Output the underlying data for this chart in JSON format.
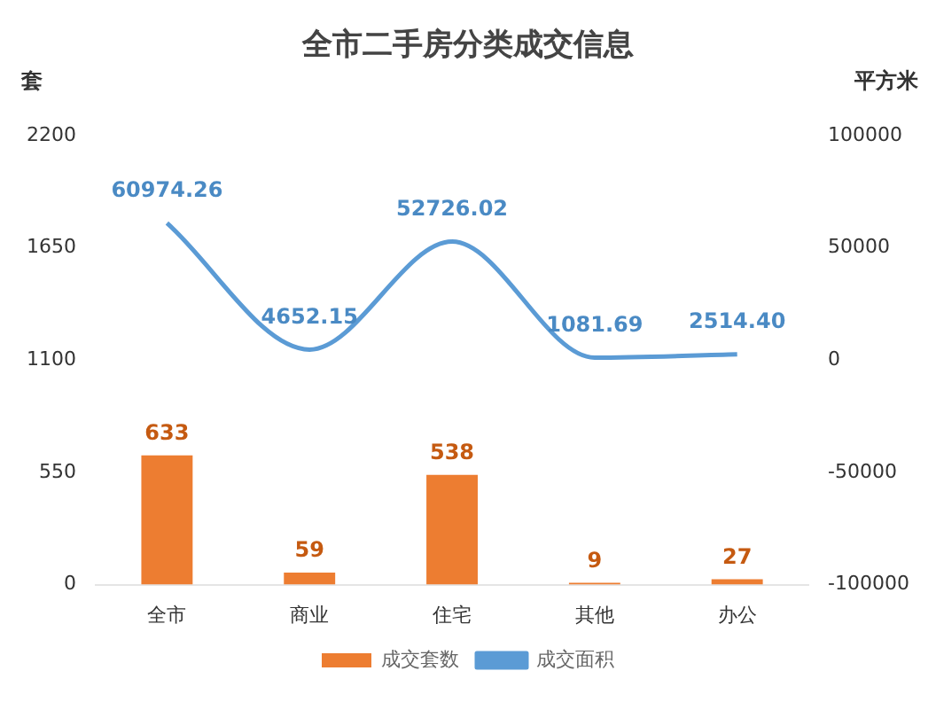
{
  "chart_data": {
    "type": "bar",
    "title": "全市二手房分类成交信息",
    "ylabel": "套",
    "y2label": "平方米",
    "categories": [
      "全市",
      "商业",
      "住宅",
      "其他",
      "办公"
    ],
    "series": [
      {
        "name": "成交套数",
        "color": "#ed7d31",
        "values": [
          633,
          59,
          538,
          9,
          27
        ],
        "value_labels": [
          "633",
          "59",
          "538",
          "9",
          "27"
        ]
      },
      {
        "name": "成交面积",
        "type": "line",
        "axis": "y2",
        "color": "#5b9bd5",
        "values": [
          60974.26,
          4652.15,
          52726.02,
          1081.69,
          2514.4
        ],
        "value_labels": [
          "60974.26",
          "4652.15",
          "52726.02",
          "1081.69",
          "2514.40"
        ]
      }
    ],
    "ylim": [
      0,
      2200
    ],
    "yticks": [
      0,
      550,
      1100,
      1650,
      2200
    ],
    "y2lim": [
      -100000,
      100000
    ],
    "y2ticks": [
      -100000,
      -50000,
      0,
      50000,
      100000
    ],
    "grid": false,
    "legend": "bottom",
    "marker": "none"
  }
}
